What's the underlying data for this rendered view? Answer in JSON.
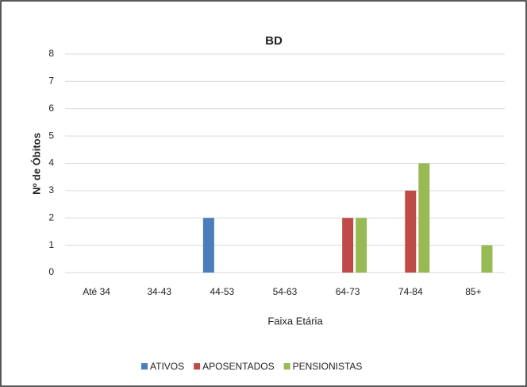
{
  "chart_data": {
    "type": "bar",
    "title": "BD",
    "xlabel": "Faixa Etária",
    "ylabel": "Nº de Óbitos",
    "categories": [
      "Até 34",
      "34-43",
      "44-53",
      "54-63",
      "64-73",
      "74-84",
      "85+"
    ],
    "series": [
      {
        "name": "ATIVOS",
        "color": "#4a7ebb",
        "values": [
          0,
          0,
          2,
          0,
          0,
          0,
          0
        ]
      },
      {
        "name": "APOSENTADOS",
        "color": "#be4b48",
        "values": [
          0,
          0,
          0,
          0,
          2,
          3,
          0
        ]
      },
      {
        "name": "PENSIONISTAS",
        "color": "#98b954",
        "values": [
          0,
          0,
          0,
          0,
          2,
          4,
          1
        ]
      }
    ],
    "ylim": [
      0,
      8
    ],
    "yticks": [
      0,
      1,
      2,
      3,
      4,
      5,
      6,
      7,
      8
    ],
    "grid": true,
    "legend": "bottom"
  }
}
